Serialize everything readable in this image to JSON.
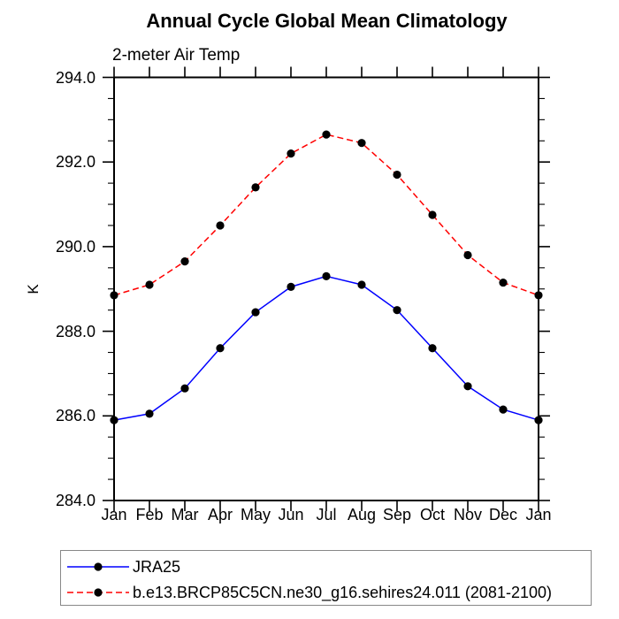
{
  "chart_data": {
    "type": "line",
    "title": "Annual Cycle Global Mean Climatology",
    "subtitle": "2-meter Air Temp",
    "ylabel": "K",
    "xlabel": "",
    "categories": [
      "Jan",
      "Feb",
      "Mar",
      "Apr",
      "May",
      "Jun",
      "Jul",
      "Aug",
      "Sep",
      "Oct",
      "Nov",
      "Dec",
      "Jan"
    ],
    "ylim": [
      284.0,
      294.0
    ],
    "ytick_labels": [
      "294.0",
      "292.0",
      "290.0",
      "288.0",
      "286.0",
      "284.0"
    ],
    "ytick_major": 2.0,
    "ytick_minor": 0.5,
    "grid": "off",
    "legend_position": "bottom-left",
    "marker_color": "#000000",
    "axis_color": "#000000",
    "series": [
      {
        "name": "JRA25",
        "color": "#0000ff",
        "dash": "none",
        "values": [
          285.9,
          286.05,
          286.65,
          287.6,
          288.45,
          289.05,
          289.3,
          289.1,
          288.5,
          287.6,
          286.7,
          286.15,
          285.9
        ]
      },
      {
        "name": "b.e13.BRCP85C5CN.ne30_g16.sehires24.011 (2081-2100)",
        "color": "#ff0000",
        "dash": "7 4",
        "values": [
          288.85,
          289.1,
          289.65,
          290.5,
          291.4,
          292.2,
          292.65,
          292.45,
          291.7,
          290.75,
          289.8,
          289.15,
          288.85
        ]
      }
    ]
  }
}
